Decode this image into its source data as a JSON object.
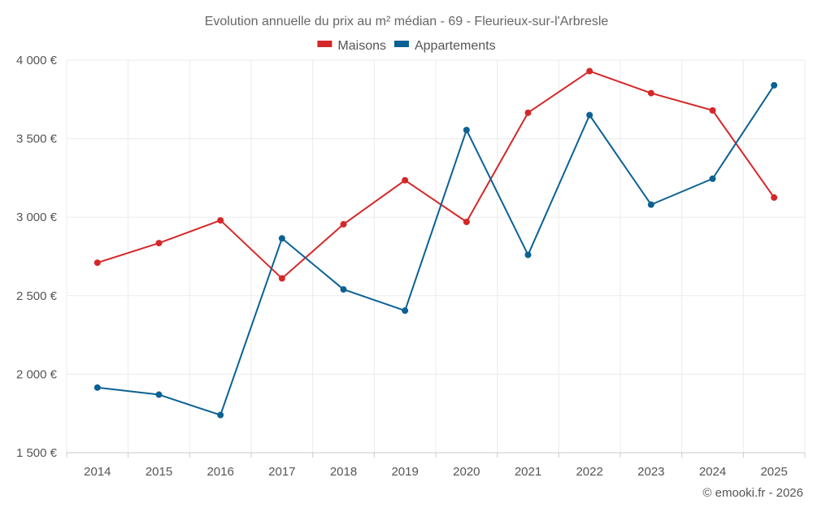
{
  "chart_data": {
    "type": "line",
    "title": "Evolution annuelle du prix au m² médian - 69 - Fleurieux-sur-l'Arbresle",
    "categories": [
      "2014",
      "2015",
      "2016",
      "2017",
      "2018",
      "2019",
      "2020",
      "2021",
      "2022",
      "2023",
      "2024",
      "2025"
    ],
    "series": [
      {
        "name": "Maisons",
        "color": "#d62728",
        "values": [
          2710,
          2835,
          2980,
          2610,
          2955,
          3235,
          2970,
          3665,
          3930,
          3790,
          3680,
          3125
        ]
      },
      {
        "name": "Appartements",
        "color": "#0b6194",
        "values": [
          1915,
          1870,
          1740,
          2865,
          2540,
          2405,
          3555,
          2760,
          3650,
          3080,
          3245,
          3840
        ]
      }
    ],
    "ylim": [
      1500,
      4000
    ],
    "yticks": [
      1500,
      2000,
      2500,
      3000,
      3500,
      4000
    ],
    "ytick_labels": [
      "1 500 €",
      "2 000 €",
      "2 500 €",
      "3 000 €",
      "3 500 €",
      "4 000 €"
    ],
    "legend_position": "top-center",
    "grid": true
  },
  "credit": "© emooki.fr - 2026"
}
